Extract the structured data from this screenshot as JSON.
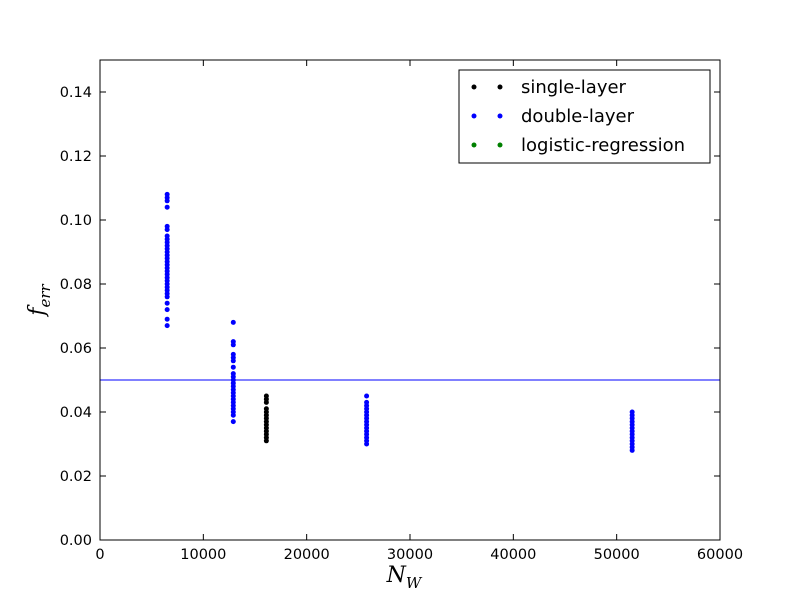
{
  "chart_data": {
    "type": "scatter",
    "xlabel": "N",
    "xlabel_sub": "W",
    "ylabel": "f",
    "ylabel_sub": "err",
    "xlim": [
      0,
      60000
    ],
    "ylim": [
      0,
      0.15
    ],
    "xticks": [
      0,
      10000,
      20000,
      30000,
      40000,
      50000,
      60000
    ],
    "xtick_labels": [
      "0",
      "10000",
      "20000",
      "30000",
      "40000",
      "50000",
      "60000"
    ],
    "yticks": [
      0.0,
      0.02,
      0.04,
      0.06,
      0.08,
      0.1,
      0.12,
      0.14
    ],
    "ytick_labels": [
      "0.00",
      "0.02",
      "0.04",
      "0.06",
      "0.08",
      "0.10",
      "0.12",
      "0.14"
    ],
    "grid": false,
    "legend_position": "top-right",
    "reference_line": {
      "y": 0.05,
      "color": "#0000ff"
    },
    "series": [
      {
        "name": "single-layer",
        "color": "#000000",
        "x": 16100,
        "y": [
          0.031,
          0.032,
          0.033,
          0.034,
          0.035,
          0.036,
          0.037,
          0.038,
          0.039,
          0.04,
          0.041,
          0.043,
          0.044,
          0.045
        ]
      },
      {
        "name": "double-layer",
        "color": "#0000ff",
        "groups": [
          {
            "x": 6500,
            "y": [
              0.067,
              0.069,
              0.072,
              0.074,
              0.076,
              0.077,
              0.078,
              0.079,
              0.08,
              0.081,
              0.082,
              0.083,
              0.084,
              0.085,
              0.086,
              0.087,
              0.088,
              0.089,
              0.09,
              0.091,
              0.092,
              0.093,
              0.094,
              0.095,
              0.097,
              0.098,
              0.104,
              0.106,
              0.107,
              0.108
            ]
          },
          {
            "x": 12900,
            "y": [
              0.037,
              0.039,
              0.04,
              0.041,
              0.042,
              0.043,
              0.044,
              0.045,
              0.046,
              0.047,
              0.048,
              0.049,
              0.05,
              0.051,
              0.052,
              0.054,
              0.056,
              0.057,
              0.058,
              0.061,
              0.062,
              0.068
            ]
          },
          {
            "x": 25800,
            "y": [
              0.03,
              0.031,
              0.032,
              0.033,
              0.034,
              0.035,
              0.036,
              0.037,
              0.038,
              0.039,
              0.04,
              0.041,
              0.042,
              0.043,
              0.045
            ]
          },
          {
            "x": 51500,
            "y": [
              0.028,
              0.029,
              0.03,
              0.031,
              0.032,
              0.033,
              0.034,
              0.035,
              0.036,
              0.037,
              0.038,
              0.039,
              0.04
            ]
          }
        ]
      },
      {
        "name": "logistic-regression",
        "color": "#008000",
        "groups": []
      }
    ]
  }
}
